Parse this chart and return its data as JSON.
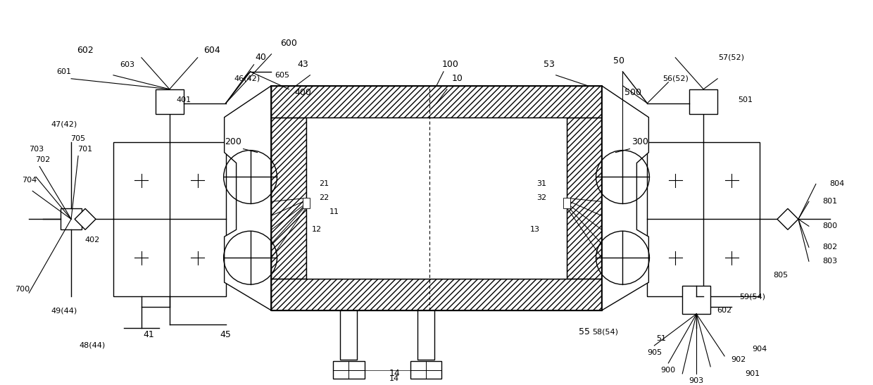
{
  "fig_width": 12.4,
  "fig_height": 5.47,
  "bg_color": "#ffffff",
  "line_color": "#000000"
}
